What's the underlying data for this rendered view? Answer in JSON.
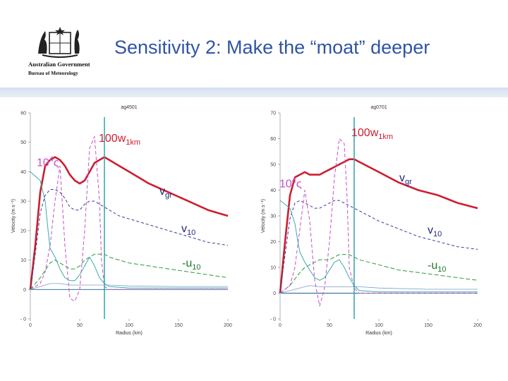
{
  "slide": {
    "title": "Sensitivity 2: Make the “moat” deeper",
    "logo": {
      "text_line1": "Australian Government",
      "text_line2": "Bureau of Meteorology",
      "icon": "coat-of-arms-icon"
    }
  },
  "colors": {
    "title": "#2f54a8",
    "band": "#dbe4f1",
    "gradient_wind": "#cc1e2e",
    "vorticity": "#c84fc8",
    "v10": "#3b3b9c",
    "u10": "#2a9a3a",
    "w": "#c84fc8",
    "rmw_line": "#3aa9b0",
    "other": "#7b9bc9"
  },
  "chart_data": [
    {
      "type": "line",
      "title": "ag4501",
      "xlabel": "Radius (km)",
      "ylabel": "Velocity (m s⁻¹)",
      "xlim": [
        0,
        200
      ],
      "ylim": [
        -10,
        60
      ],
      "xticks": [
        "0",
        "50",
        "100",
        "150",
        "200"
      ],
      "yticks": [
        "- 0",
        "0",
        "10",
        "20",
        "30",
        "40",
        "50",
        "60"
      ],
      "vline_x": 75,
      "grid": false,
      "labels": {
        "w": "100w",
        "w_sub": "1km",
        "zeta": "10",
        "zeta_sup": "4",
        "zeta_sym": "ς",
        "vgr": "v",
        "vgr_sub": "gr",
        "v10": "v",
        "v10_sub": "10",
        "u10": "-u",
        "u10_sub": "10"
      },
      "series": [
        {
          "key": "vgr",
          "color": "#cc1e2e",
          "width": 2.6,
          "dash": "",
          "x": [
            0,
            5,
            10,
            15,
            20,
            25,
            30,
            35,
            40,
            45,
            50,
            55,
            60,
            65,
            70,
            75,
            80,
            90,
            100,
            120,
            140,
            160,
            180,
            200
          ],
          "y": [
            0,
            15,
            33,
            42,
            44,
            45,
            44,
            42,
            39,
            37,
            36,
            37,
            40,
            43,
            44,
            45,
            44,
            42,
            40,
            36,
            33,
            30,
            27,
            25
          ]
        },
        {
          "key": "v10",
          "color": "#3b3b9c",
          "width": 1.0,
          "dash": "4,3",
          "x": [
            0,
            5,
            10,
            15,
            20,
            25,
            30,
            35,
            40,
            45,
            50,
            55,
            60,
            65,
            70,
            75,
            80,
            90,
            100,
            120,
            140,
            160,
            180,
            200
          ],
          "y": [
            0,
            12,
            26,
            32,
            34,
            34,
            33,
            31,
            28,
            27,
            27,
            29,
            30,
            30,
            29,
            28,
            27,
            25,
            24,
            22,
            20,
            18,
            16,
            15
          ]
        },
        {
          "key": "u10",
          "color": "#2a9a3a",
          "width": 1.0,
          "dash": "6,3",
          "x": [
            0,
            10,
            20,
            25,
            30,
            35,
            40,
            45,
            50,
            55,
            60,
            65,
            70,
            75,
            80,
            90,
            100,
            120,
            140,
            160,
            180,
            200
          ],
          "y": [
            0,
            4,
            9,
            10,
            9,
            8,
            7,
            7,
            8,
            10,
            11,
            12,
            12,
            12,
            11,
            10,
            9,
            8,
            7,
            6,
            5,
            4
          ]
        },
        {
          "key": "w",
          "color": "#c84fc8",
          "width": 1.0,
          "dash": "5,3",
          "x": [
            0,
            10,
            15,
            20,
            25,
            30,
            35,
            40,
            45,
            50,
            55,
            60,
            65,
            70,
            72,
            75,
            80,
            90,
            100,
            120,
            140,
            160,
            180,
            200
          ],
          "y": [
            0,
            2,
            6,
            15,
            30,
            42,
            15,
            -3,
            -4,
            0,
            20,
            48,
            52,
            30,
            10,
            1,
            0,
            0,
            0,
            0,
            0,
            0,
            0,
            0
          ]
        },
        {
          "key": "zeta",
          "color": "#3aa9b0",
          "width": 1.0,
          "dash": "",
          "x": [
            0,
            10,
            15,
            18,
            20,
            25,
            30,
            35,
            40,
            45,
            50,
            55,
            60,
            65,
            70,
            75,
            80,
            100,
            150,
            200
          ],
          "y": [
            40,
            37,
            30,
            20,
            14,
            11,
            7,
            4,
            3,
            3,
            5,
            8,
            11,
            8,
            4,
            2,
            1,
            0.5,
            0.5,
            0.5
          ]
        },
        {
          "key": "other",
          "color": "#7b9bc9",
          "width": 0.8,
          "dash": "",
          "x": [
            0,
            10,
            20,
            30,
            40,
            60,
            80,
            100,
            150,
            200
          ],
          "y": [
            0,
            1,
            2,
            2,
            1.5,
            1.5,
            1.5,
            1.2,
            1,
            1
          ]
        }
      ]
    },
    {
      "type": "line",
      "title": "ag0701",
      "xlabel": "Radius (km)",
      "ylabel": "Velocity (m s⁻¹)",
      "xlim": [
        0,
        200
      ],
      "ylim": [
        -10,
        70
      ],
      "xticks": [
        "0",
        "50",
        "100",
        "150",
        "200"
      ],
      "yticks": [
        "- 0",
        "0",
        "10",
        "20",
        "30",
        "40",
        "50",
        "60",
        "70"
      ],
      "vline_x": 75,
      "grid": false,
      "labels": {
        "w": "100w",
        "w_sub": "1km",
        "zeta": "10",
        "zeta_sup": "4",
        "zeta_sym": "ς",
        "vgr": "v",
        "vgr_sub": "gr",
        "v10": "v",
        "v10_sub": "10",
        "u10": "-u",
        "u10_sub": "10"
      },
      "series": [
        {
          "key": "vgr",
          "color": "#cc1e2e",
          "width": 2.6,
          "dash": "",
          "x": [
            0,
            5,
            10,
            15,
            20,
            25,
            30,
            35,
            40,
            45,
            50,
            55,
            60,
            65,
            70,
            75,
            80,
            90,
            100,
            120,
            140,
            160,
            180,
            200
          ],
          "y": [
            0,
            20,
            38,
            45,
            46,
            47,
            46,
            46,
            46,
            47,
            48,
            49,
            50,
            51,
            52,
            52,
            51,
            49,
            47,
            43,
            40,
            38,
            35,
            33
          ]
        },
        {
          "key": "v10",
          "color": "#3b3b9c",
          "width": 1.0,
          "dash": "4,3",
          "x": [
            0,
            5,
            10,
            15,
            20,
            25,
            30,
            35,
            40,
            45,
            50,
            55,
            60,
            65,
            70,
            75,
            80,
            90,
            100,
            120,
            140,
            160,
            180,
            200
          ],
          "y": [
            0,
            15,
            29,
            35,
            36,
            35,
            34,
            33,
            33,
            34,
            35,
            36,
            36,
            35,
            34,
            33,
            32,
            30,
            28,
            25,
            22,
            20,
            18,
            17
          ]
        },
        {
          "key": "u10",
          "color": "#2a9a3a",
          "width": 1.0,
          "dash": "6,3",
          "x": [
            0,
            10,
            20,
            25,
            30,
            35,
            40,
            45,
            50,
            55,
            60,
            65,
            70,
            75,
            80,
            90,
            100,
            120,
            140,
            160,
            180,
            200
          ],
          "y": [
            0,
            3,
            8,
            10,
            11,
            12,
            13,
            13,
            13,
            14,
            15,
            15,
            15,
            14,
            13,
            12,
            11,
            9,
            8,
            7,
            6,
            5
          ]
        },
        {
          "key": "w",
          "color": "#c84fc8",
          "width": 1.0,
          "dash": "5,3",
          "x": [
            0,
            10,
            15,
            20,
            25,
            30,
            35,
            40,
            45,
            50,
            55,
            60,
            65,
            68,
            70,
            75,
            80,
            90,
            100,
            120,
            140,
            160,
            180,
            200
          ],
          "y": [
            0,
            3,
            10,
            25,
            40,
            28,
            5,
            -5,
            2,
            20,
            45,
            60,
            58,
            35,
            10,
            2,
            0,
            0,
            0,
            0,
            0,
            0,
            0,
            0
          ]
        },
        {
          "key": "zeta",
          "color": "#3aa9b0",
          "width": 1.0,
          "dash": "",
          "x": [
            0,
            10,
            15,
            18,
            20,
            25,
            30,
            35,
            40,
            45,
            50,
            55,
            60,
            65,
            70,
            75,
            80,
            100,
            150,
            200
          ],
          "y": [
            36,
            33,
            27,
            20,
            16,
            12,
            9,
            6,
            5,
            6,
            9,
            12,
            13,
            10,
            6,
            3,
            1,
            0.5,
            0.5,
            0.5
          ]
        },
        {
          "key": "other",
          "color": "#7b9bc9",
          "width": 0.8,
          "dash": "",
          "x": [
            0,
            10,
            20,
            30,
            40,
            60,
            80,
            100,
            150,
            200
          ],
          "y": [
            0,
            1,
            2,
            3,
            2.5,
            2.5,
            2.5,
            2,
            1.5,
            1.5
          ]
        }
      ]
    }
  ]
}
